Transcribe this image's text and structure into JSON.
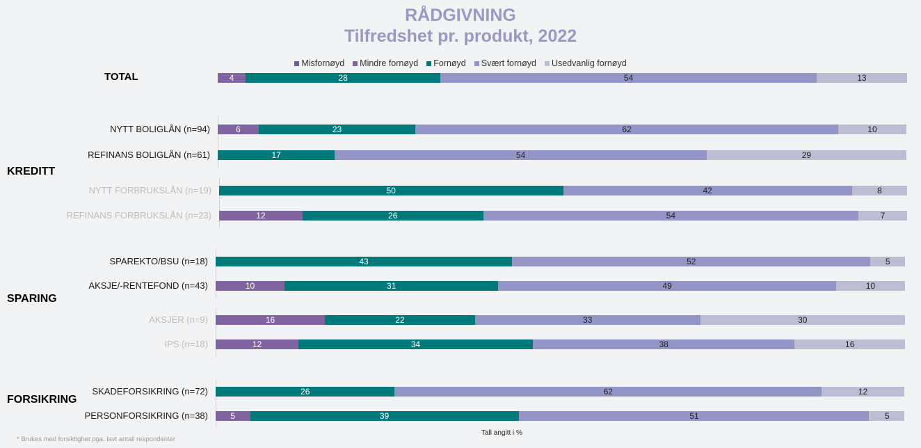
{
  "chart_data": {
    "type": "bar",
    "orientation": "horizontal",
    "stacked": true,
    "title": "RÅDGIVNING",
    "subtitle": "Tilfredshet pr. produkt, 2022",
    "legend_position": "top",
    "unit_note": "Tall angitt i %",
    "footnote": "* Brukes med forsiktighet pga. lavt antall respondenter",
    "series": [
      {
        "name": "Misfornøyd",
        "color": "#6b5b95"
      },
      {
        "name": "Mindre fornøyd",
        "color": "#8064a2"
      },
      {
        "name": "Fornøyd",
        "color": "#00797a"
      },
      {
        "name": "Svært fornøyd",
        "color": "#9395c6"
      },
      {
        "name": "Usedvanlig fornøyd",
        "color": "#bcbcd2"
      }
    ],
    "groups": [
      {
        "label": "KREDITT"
      },
      {
        "label": "SPARING"
      },
      {
        "label": "FORSIKRING"
      }
    ],
    "categories": [
      {
        "label": "TOTAL",
        "values": [
          0,
          4,
          28,
          54,
          13
        ]
      },
      {
        "label": "NYTT BOLIGLÅN (n=94)",
        "values": [
          0,
          6,
          23,
          62,
          10
        ]
      },
      {
        "label": "REFINANS BOLIGLÅN (n=61)",
        "values": [
          0,
          0,
          17,
          54,
          29
        ]
      },
      {
        "label": "NYTT FORBRUKSLÅN (n=19)",
        "values": [
          0,
          0,
          50,
          42,
          8
        ]
      },
      {
        "label": "REFINANS FORBRUKSLÅN (n=23)",
        "values": [
          0,
          12,
          26,
          54,
          7
        ]
      },
      {
        "label": "SPAREKTO/BSU (n=18)",
        "values": [
          0,
          0,
          43,
          52,
          5
        ]
      },
      {
        "label": "AKSJE/-RENTEFOND (n=43)",
        "values": [
          0,
          10,
          31,
          49,
          10
        ]
      },
      {
        "label": "AKSJER (n=9)",
        "values": [
          0,
          16,
          22,
          33,
          30
        ]
      },
      {
        "label": "IPS (n=18)",
        "values": [
          0,
          12,
          34,
          38,
          16
        ]
      },
      {
        "label": "SKADEFORSIKRING (n=72)",
        "values": [
          0,
          0,
          26,
          62,
          12
        ]
      },
      {
        "label": "PERSONFORSIKRING (n=38)",
        "values": [
          0,
          5,
          39,
          51,
          5
        ]
      }
    ]
  }
}
